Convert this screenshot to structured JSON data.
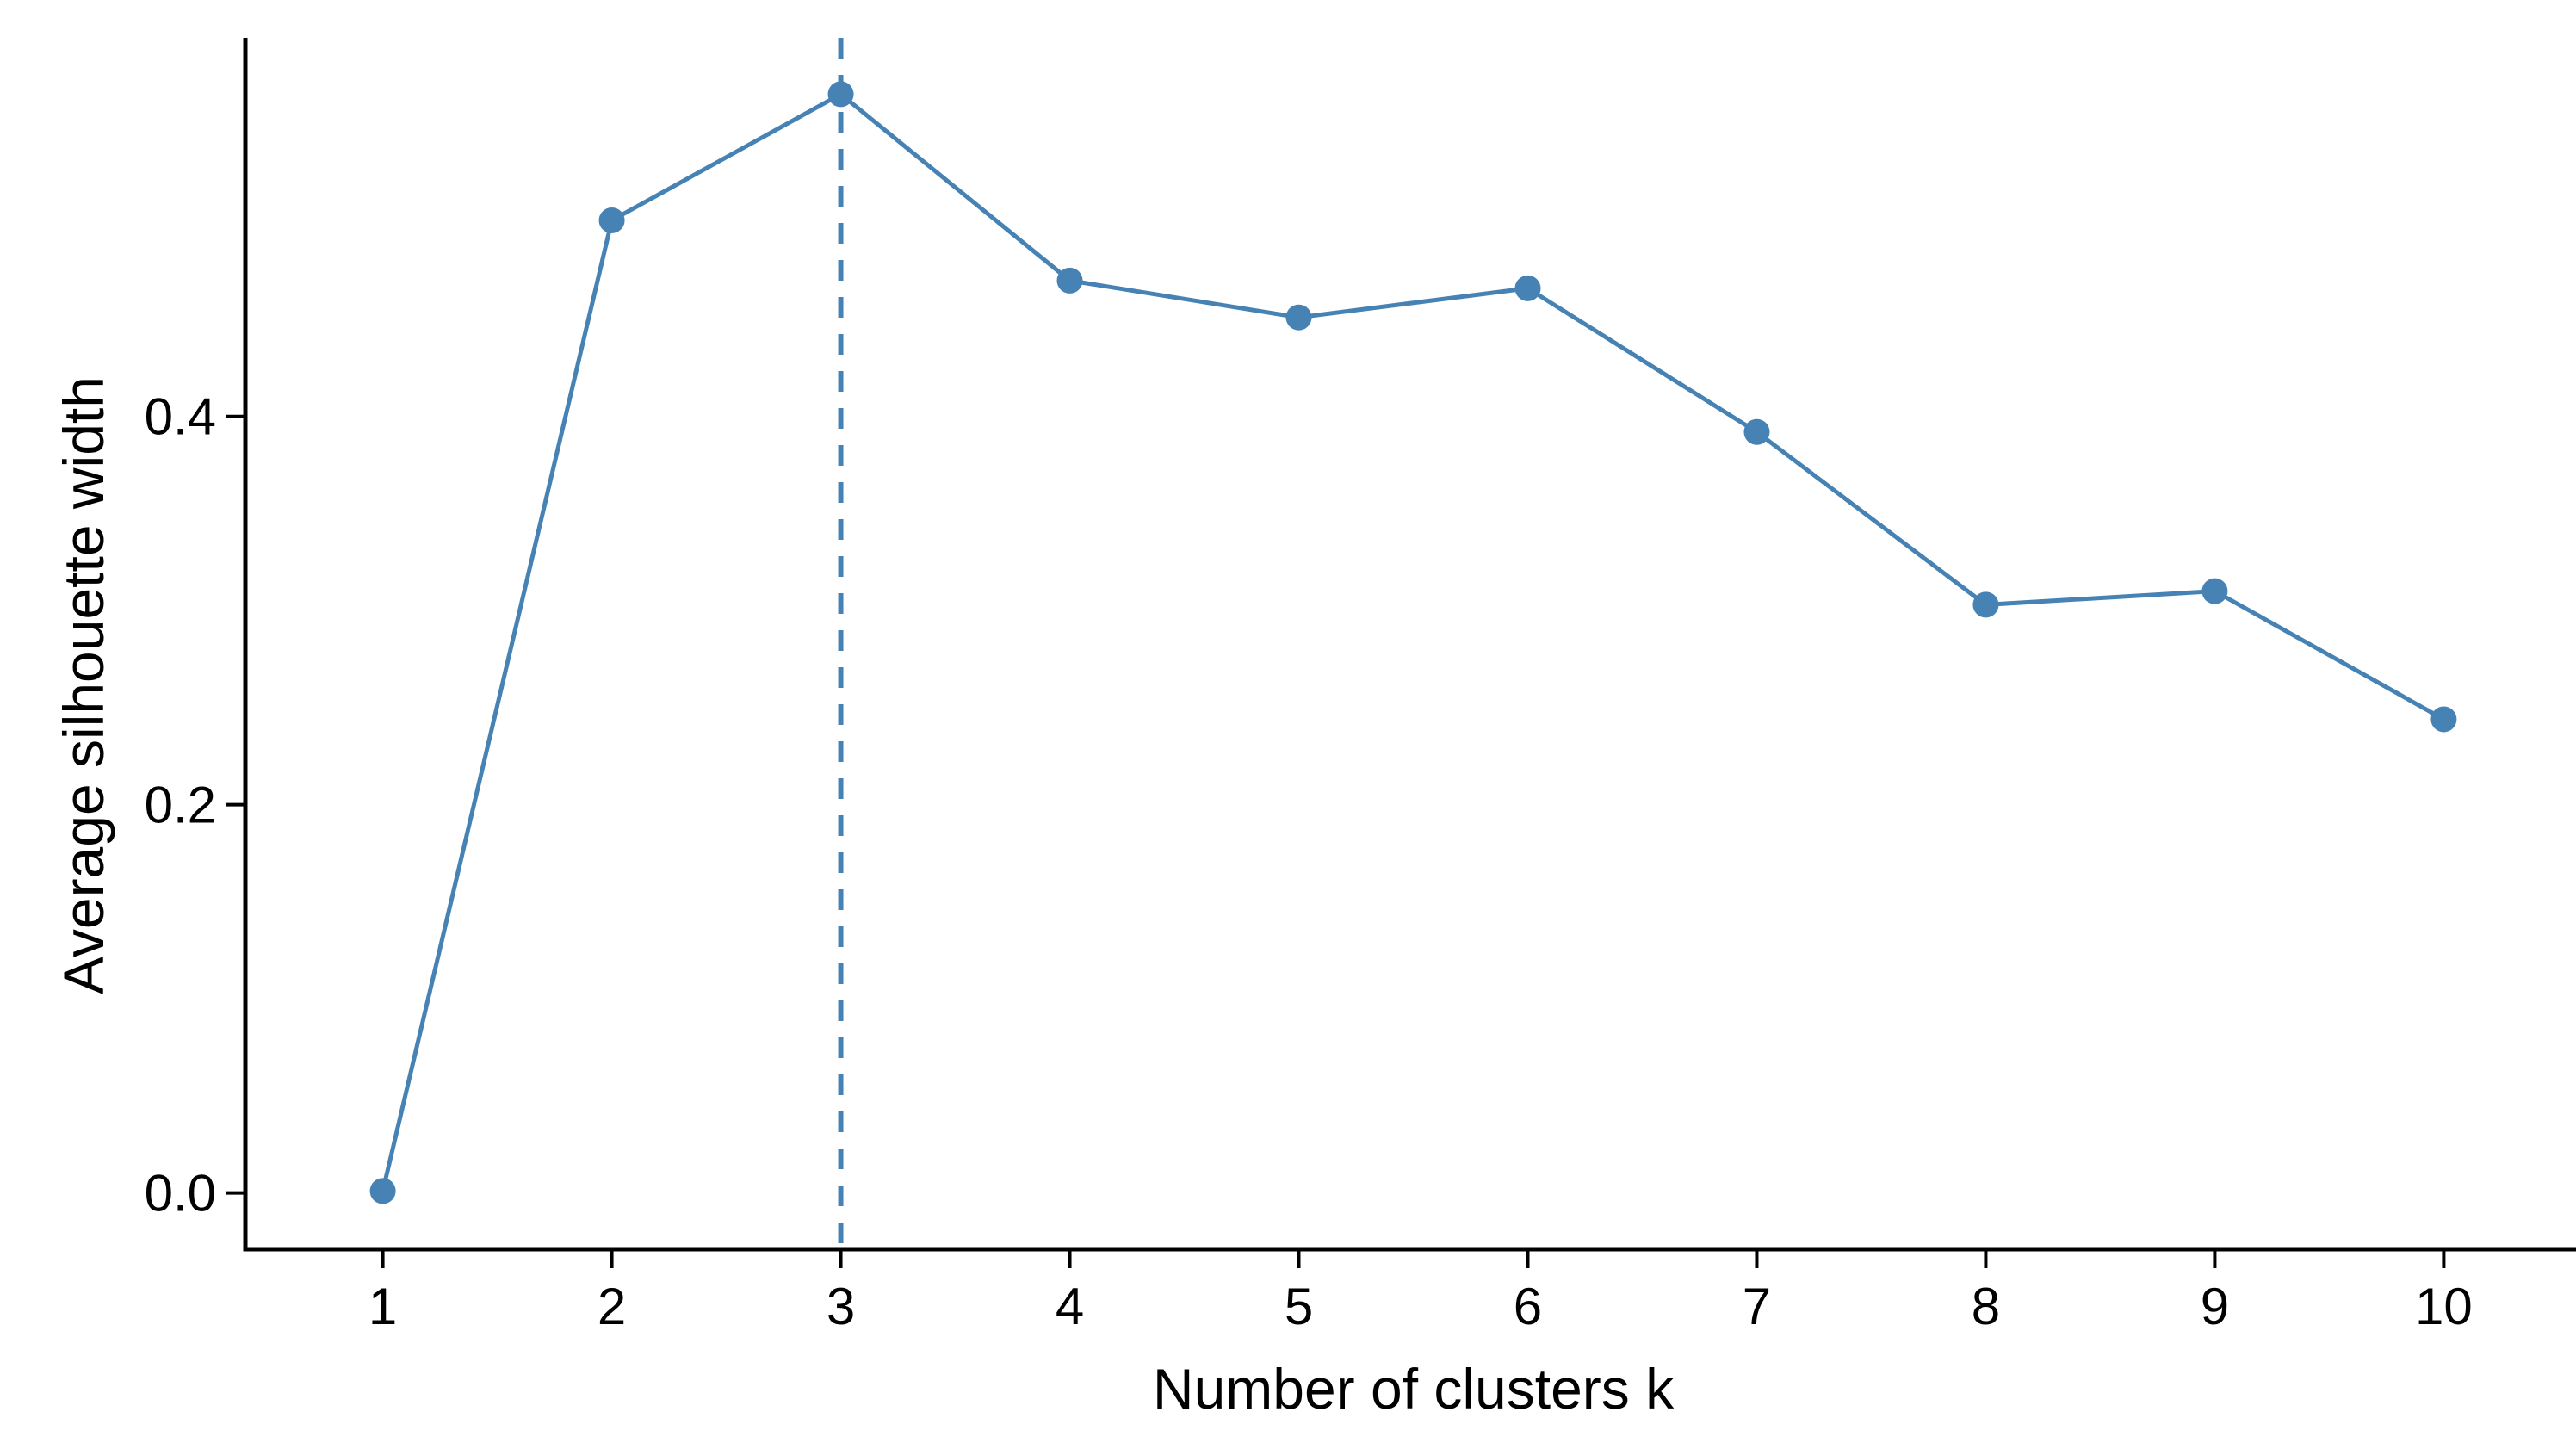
{
  "chart_data": {
    "type": "line",
    "title": "",
    "xlabel": "Number of clusters k",
    "ylabel": "Average silhouette width",
    "x": [
      1,
      2,
      3,
      4,
      5,
      6,
      7,
      8,
      9,
      10
    ],
    "values": [
      0.001,
      0.501,
      0.566,
      0.47,
      0.451,
      0.466,
      0.392,
      0.303,
      0.31,
      0.244
    ],
    "x_tick_labels": [
      "1",
      "2",
      "3",
      "4",
      "5",
      "6",
      "7",
      "8",
      "9",
      "10"
    ],
    "y_tick_values": [
      0.0,
      0.2,
      0.4
    ],
    "y_tick_labels": [
      "0.0",
      "0.2",
      "0.4"
    ],
    "xlim": [
      0.4,
      10.6
    ],
    "ylim": [
      -0.029,
      0.595
    ],
    "optimal_k": 3,
    "vline_style": "dashed",
    "grid": "off",
    "legend": "none",
    "series_color": "#4682B4",
    "vline_color": "#4682B4",
    "axis_color": "#000000",
    "text_color": "#000000"
  }
}
